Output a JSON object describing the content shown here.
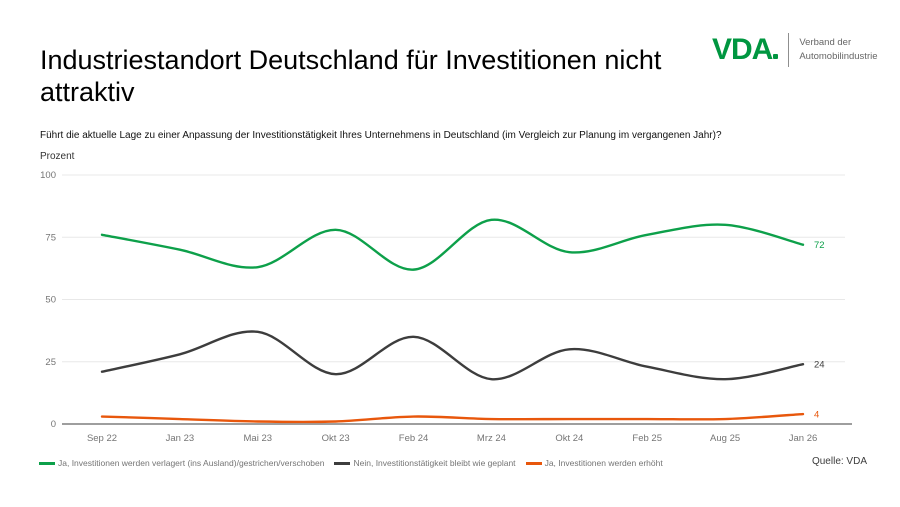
{
  "page": {
    "title_line1": "Industriestandort Deutschland für Investitionen nicht",
    "title_line2": "attraktiv",
    "source": "Quelle: VDA"
  },
  "logo": {
    "text": "VDA",
    "tagline_line1": "Verband der",
    "tagline_line2": "Automobilindustrie",
    "green": "#009640"
  },
  "chart_data": {
    "type": "line",
    "title": "Industriestandort Deutschland für Investitionen nicht attraktiv",
    "subtitle": "Führt die aktuelle Lage zu einer Anpassung der Investitionstätigkeit Ihres Unternehmens in Deutschland (im Vergleich zur Planung im vergangenen Jahr)?",
    "xlabel": "",
    "ylabel": "Prozent",
    "ylim": [
      0,
      100
    ],
    "yticks": [
      0,
      25,
      50,
      75,
      100
    ],
    "grid": true,
    "smooth": true,
    "legend_position": "bottom",
    "categories": [
      "Sep 22",
      "Jan 23",
      "Mai 23",
      "Okt 23",
      "Feb 24",
      "Mrz 24",
      "Okt 24",
      "Feb 25",
      "Aug 25",
      "Jan 26"
    ],
    "series": [
      {
        "name": "Ja, Investitionen werden verlagert (ins Ausland)/gestrichen/verschoben",
        "color": "#0da04a",
        "values": [
          76,
          70,
          63,
          78,
          62,
          82,
          69,
          76,
          80,
          72
        ]
      },
      {
        "name": "Nein, Investitionstätigkeit bleibt wie geplant",
        "color": "#3d3d3d",
        "values": [
          21,
          28,
          37,
          20,
          35,
          18,
          30,
          23,
          18,
          24
        ]
      },
      {
        "name": "Ja, Investitionen werden erhöht",
        "color": "#e8570c",
        "values": [
          3,
          2,
          1,
          1,
          3,
          2,
          2,
          2,
          2,
          4
        ]
      }
    ]
  }
}
